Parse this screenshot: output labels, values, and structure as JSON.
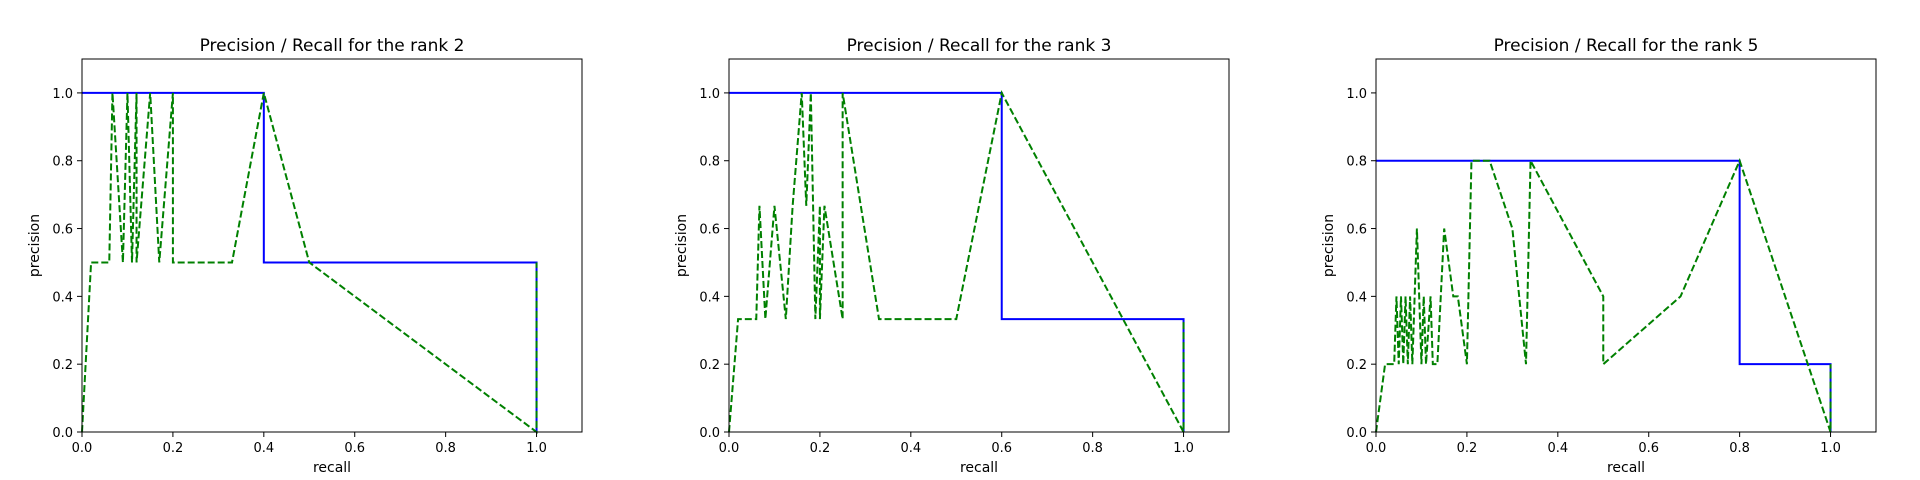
{
  "chart_data": [
    {
      "type": "line",
      "title": "Precision / Recall for the rank 2",
      "xlabel": "recall",
      "ylabel": "precision",
      "xlim": [
        0.0,
        1.1
      ],
      "ylim": [
        0.0,
        1.1
      ],
      "xticks": [
        "0.0",
        "0.2",
        "0.4",
        "0.6",
        "0.8",
        "1.0"
      ],
      "yticks": [
        "0.0",
        "0.2",
        "0.4",
        "0.6",
        "0.8",
        "1.0"
      ],
      "grid": false,
      "series": [
        {
          "style": "solid",
          "color": "#0000ff",
          "x": [
            0.0,
            0.4,
            0.4,
            1.0,
            1.0
          ],
          "y": [
            1.0,
            1.0,
            0.5,
            0.5,
            0.0
          ]
        },
        {
          "style": "dashed",
          "color": "#008000",
          "x": [
            0.0,
            0.02,
            0.06,
            0.067,
            0.09,
            0.1,
            0.11,
            0.12,
            0.12,
            0.15,
            0.17,
            0.2,
            0.2,
            0.25,
            0.33,
            0.4,
            0.5,
            1.0,
            1.0
          ],
          "y": [
            0.0,
            0.5,
            0.5,
            1.0,
            0.5,
            1.0,
            0.5,
            1.0,
            0.5,
            1.0,
            0.5,
            1.0,
            0.5,
            0.5,
            0.5,
            1.0,
            0.5,
            0.0,
            0.5
          ]
        }
      ]
    },
    {
      "type": "line",
      "title": "Precision / Recall for the rank 3",
      "xlabel": "recall",
      "ylabel": "precision",
      "xlim": [
        0.0,
        1.1
      ],
      "ylim": [
        0.0,
        1.1
      ],
      "xticks": [
        "0.0",
        "0.2",
        "0.4",
        "0.6",
        "0.8",
        "1.0"
      ],
      "yticks": [
        "0.0",
        "0.2",
        "0.4",
        "0.6",
        "0.8",
        "1.0"
      ],
      "grid": false,
      "series": [
        {
          "style": "solid",
          "color": "#0000ff",
          "x": [
            0.0,
            0.6,
            0.6,
            1.0,
            1.0
          ],
          "y": [
            1.0,
            1.0,
            0.333,
            0.333,
            0.0
          ]
        },
        {
          "style": "dashed",
          "color": "#008000",
          "x": [
            0.0,
            0.02,
            0.06,
            0.067,
            0.08,
            0.1,
            0.125,
            0.14,
            0.16,
            0.17,
            0.18,
            0.19,
            0.2,
            0.2,
            0.21,
            0.25,
            0.25,
            0.33,
            0.5,
            0.6,
            1.0,
            1.0
          ],
          "y": [
            0.0,
            0.333,
            0.333,
            0.667,
            0.333,
            0.667,
            0.333,
            0.667,
            1.0,
            0.667,
            1.0,
            0.333,
            0.667,
            0.333,
            0.667,
            0.333,
            1.0,
            0.333,
            0.333,
            1.0,
            0.0,
            0.333
          ]
        }
      ]
    },
    {
      "type": "line",
      "title": "Precision / Recall for the rank 5",
      "xlabel": "recall",
      "ylabel": "precision",
      "xlim": [
        0.0,
        1.1
      ],
      "ylim": [
        0.0,
        1.1
      ],
      "xticks": [
        "0.0",
        "0.2",
        "0.4",
        "0.6",
        "0.8",
        "1.0"
      ],
      "yticks": [
        "0.0",
        "0.2",
        "0.4",
        "0.6",
        "0.8",
        "1.0"
      ],
      "grid": false,
      "series": [
        {
          "style": "solid",
          "color": "#0000ff",
          "x": [
            0.0,
            0.8,
            0.8,
            1.0,
            1.0
          ],
          "y": [
            0.8,
            0.8,
            0.2,
            0.2,
            0.0
          ]
        },
        {
          "style": "dashed",
          "color": "#008000",
          "x": [
            0.0,
            0.02,
            0.04,
            0.045,
            0.05,
            0.055,
            0.06,
            0.065,
            0.07,
            0.075,
            0.08,
            0.09,
            0.1,
            0.105,
            0.11,
            0.12,
            0.125,
            0.135,
            0.15,
            0.17,
            0.18,
            0.2,
            0.21,
            0.25,
            0.3,
            0.33,
            0.34,
            0.5,
            0.5,
            0.67,
            0.8,
            1.0,
            1.0
          ],
          "y": [
            0.0,
            0.2,
            0.2,
            0.4,
            0.2,
            0.4,
            0.2,
            0.4,
            0.2,
            0.4,
            0.2,
            0.6,
            0.2,
            0.4,
            0.2,
            0.4,
            0.2,
            0.2,
            0.6,
            0.4,
            0.4,
            0.2,
            0.8,
            0.8,
            0.6,
            0.2,
            0.8,
            0.4,
            0.2,
            0.4,
            0.8,
            0.0,
            0.2
          ]
        }
      ]
    }
  ]
}
